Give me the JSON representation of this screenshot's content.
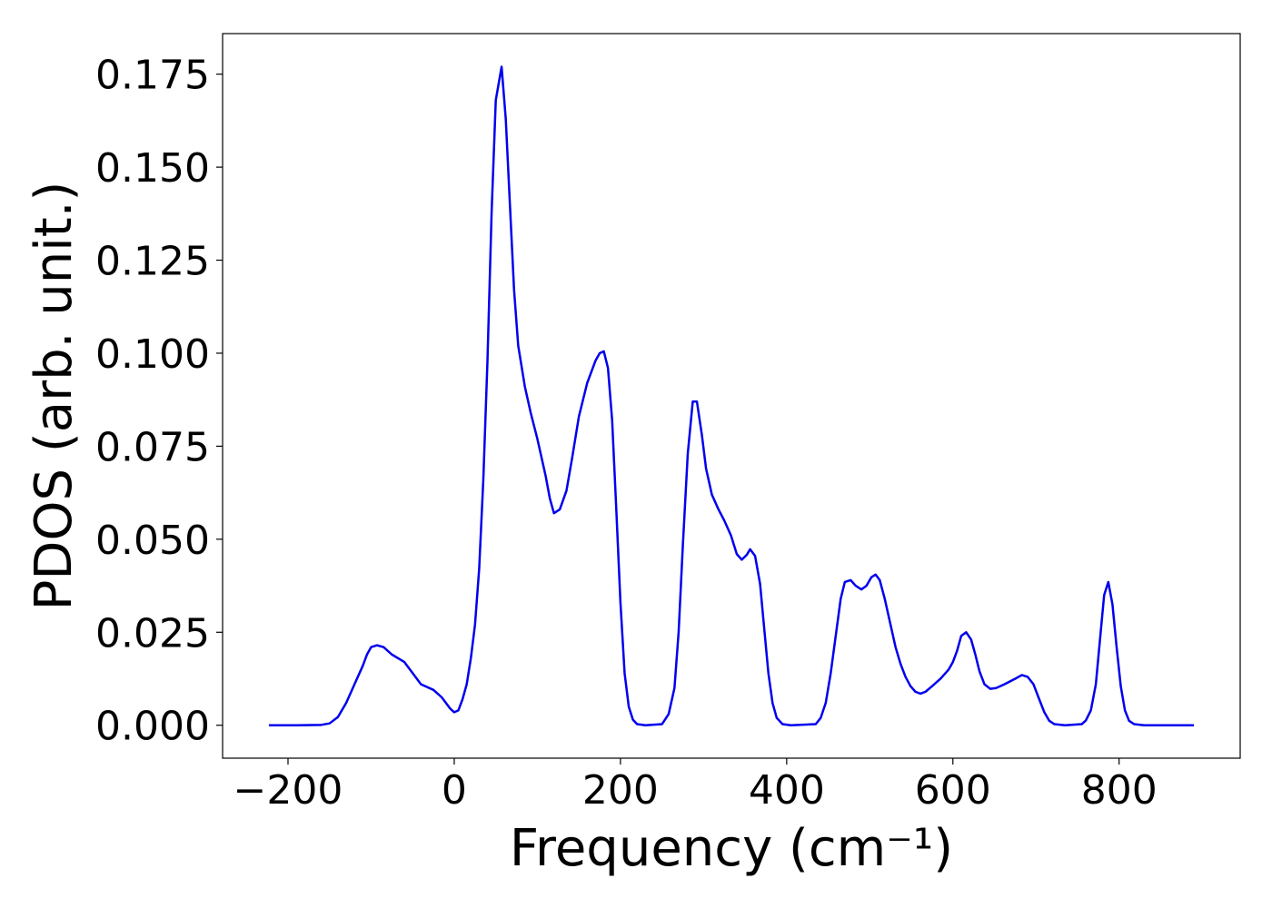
{
  "chart_data": {
    "type": "line",
    "xlabel": "Frequency (cm⁻¹)",
    "ylabel": "PDOS (arb. unit.)",
    "x": [
      -223,
      -190,
      -160,
      -150,
      -140,
      -130,
      -120,
      -110,
      -105,
      -100,
      -93,
      -85,
      -75,
      -60,
      -50,
      -40,
      -25,
      -15,
      -5,
      0,
      5,
      10,
      15,
      20,
      25,
      30,
      35,
      40,
      45,
      50,
      57,
      62,
      67,
      72,
      77,
      85,
      92,
      100,
      110,
      115,
      120,
      127,
      135,
      142,
      150,
      160,
      170,
      175,
      180,
      185,
      190,
      195,
      200,
      205,
      210,
      215,
      220,
      230,
      250,
      258,
      265,
      270,
      275,
      281,
      287,
      292,
      298,
      303,
      310,
      318,
      325,
      333,
      340,
      346,
      352,
      356,
      362,
      368,
      373,
      378,
      383,
      388,
      395,
      405,
      435,
      441,
      447,
      453,
      459,
      465,
      470,
      477,
      483,
      490,
      496,
      502,
      507,
      512,
      518,
      525,
      531,
      537,
      543,
      549,
      555,
      561,
      567,
      575,
      585,
      595,
      600,
      605,
      610,
      616,
      622,
      627,
      632,
      638,
      645,
      652,
      662,
      675,
      683,
      690,
      697,
      703,
      710,
      716,
      722,
      735,
      755,
      760,
      766,
      772,
      777,
      782,
      787,
      792,
      797,
      802,
      807,
      812,
      818,
      830,
      890
    ],
    "series": [
      {
        "name": "PDOS",
        "color": "#0000ee",
        "values": [
          0,
          0,
          0.0001,
          0.0005,
          0.0022,
          0.006,
          0.011,
          0.016,
          0.019,
          0.021,
          0.0215,
          0.021,
          0.019,
          0.017,
          0.014,
          0.011,
          0.0095,
          0.0075,
          0.0045,
          0.0035,
          0.004,
          0.007,
          0.011,
          0.018,
          0.027,
          0.042,
          0.066,
          0.098,
          0.138,
          0.168,
          0.177,
          0.163,
          0.14,
          0.117,
          0.102,
          0.091,
          0.084,
          0.077,
          0.067,
          0.061,
          0.057,
          0.058,
          0.063,
          0.072,
          0.083,
          0.092,
          0.098,
          0.1,
          0.1005,
          0.096,
          0.082,
          0.058,
          0.033,
          0.014,
          0.005,
          0.0015,
          0.0003,
          0,
          0.0003,
          0.003,
          0.01,
          0.025,
          0.048,
          0.073,
          0.087,
          0.087,
          0.078,
          0.069,
          0.062,
          0.058,
          0.055,
          0.051,
          0.046,
          0.0445,
          0.0458,
          0.0473,
          0.0455,
          0.038,
          0.026,
          0.014,
          0.006,
          0.002,
          0.0003,
          0,
          0.0003,
          0.002,
          0.006,
          0.014,
          0.024,
          0.034,
          0.0385,
          0.039,
          0.0375,
          0.0365,
          0.0375,
          0.0398,
          0.0405,
          0.039,
          0.034,
          0.027,
          0.021,
          0.0165,
          0.013,
          0.0105,
          0.009,
          0.0085,
          0.009,
          0.0105,
          0.0125,
          0.015,
          0.017,
          0.02,
          0.024,
          0.025,
          0.023,
          0.019,
          0.0145,
          0.011,
          0.0098,
          0.01,
          0.011,
          0.0125,
          0.0135,
          0.013,
          0.011,
          0.0075,
          0.0035,
          0.0012,
          0.0003,
          0,
          0.0003,
          0.0013,
          0.004,
          0.011,
          0.023,
          0.035,
          0.0385,
          0.0325,
          0.021,
          0.0105,
          0.004,
          0.0012,
          0.0003,
          0,
          0
        ]
      }
    ],
    "xlim": [
      -278.7,
      945.7
    ],
    "ylim": [
      -0.00885,
      0.1859
    ],
    "xticks": [
      {
        "value": -200,
        "label": "−200"
      },
      0,
      200,
      400,
      600,
      800
    ],
    "yticks": [
      {
        "value": 0,
        "label": "0.000"
      },
      {
        "value": 0.025,
        "label": "0.025"
      },
      {
        "value": 0.05,
        "label": "0.050"
      },
      {
        "value": 0.075,
        "label": "0.075"
      },
      {
        "value": 0.1,
        "label": "0.100"
      },
      {
        "value": 0.125,
        "label": "0.125"
      },
      {
        "value": 0.15,
        "label": "0.150"
      },
      {
        "value": 0.175,
        "label": "0.175"
      }
    ],
    "grid": false
  }
}
